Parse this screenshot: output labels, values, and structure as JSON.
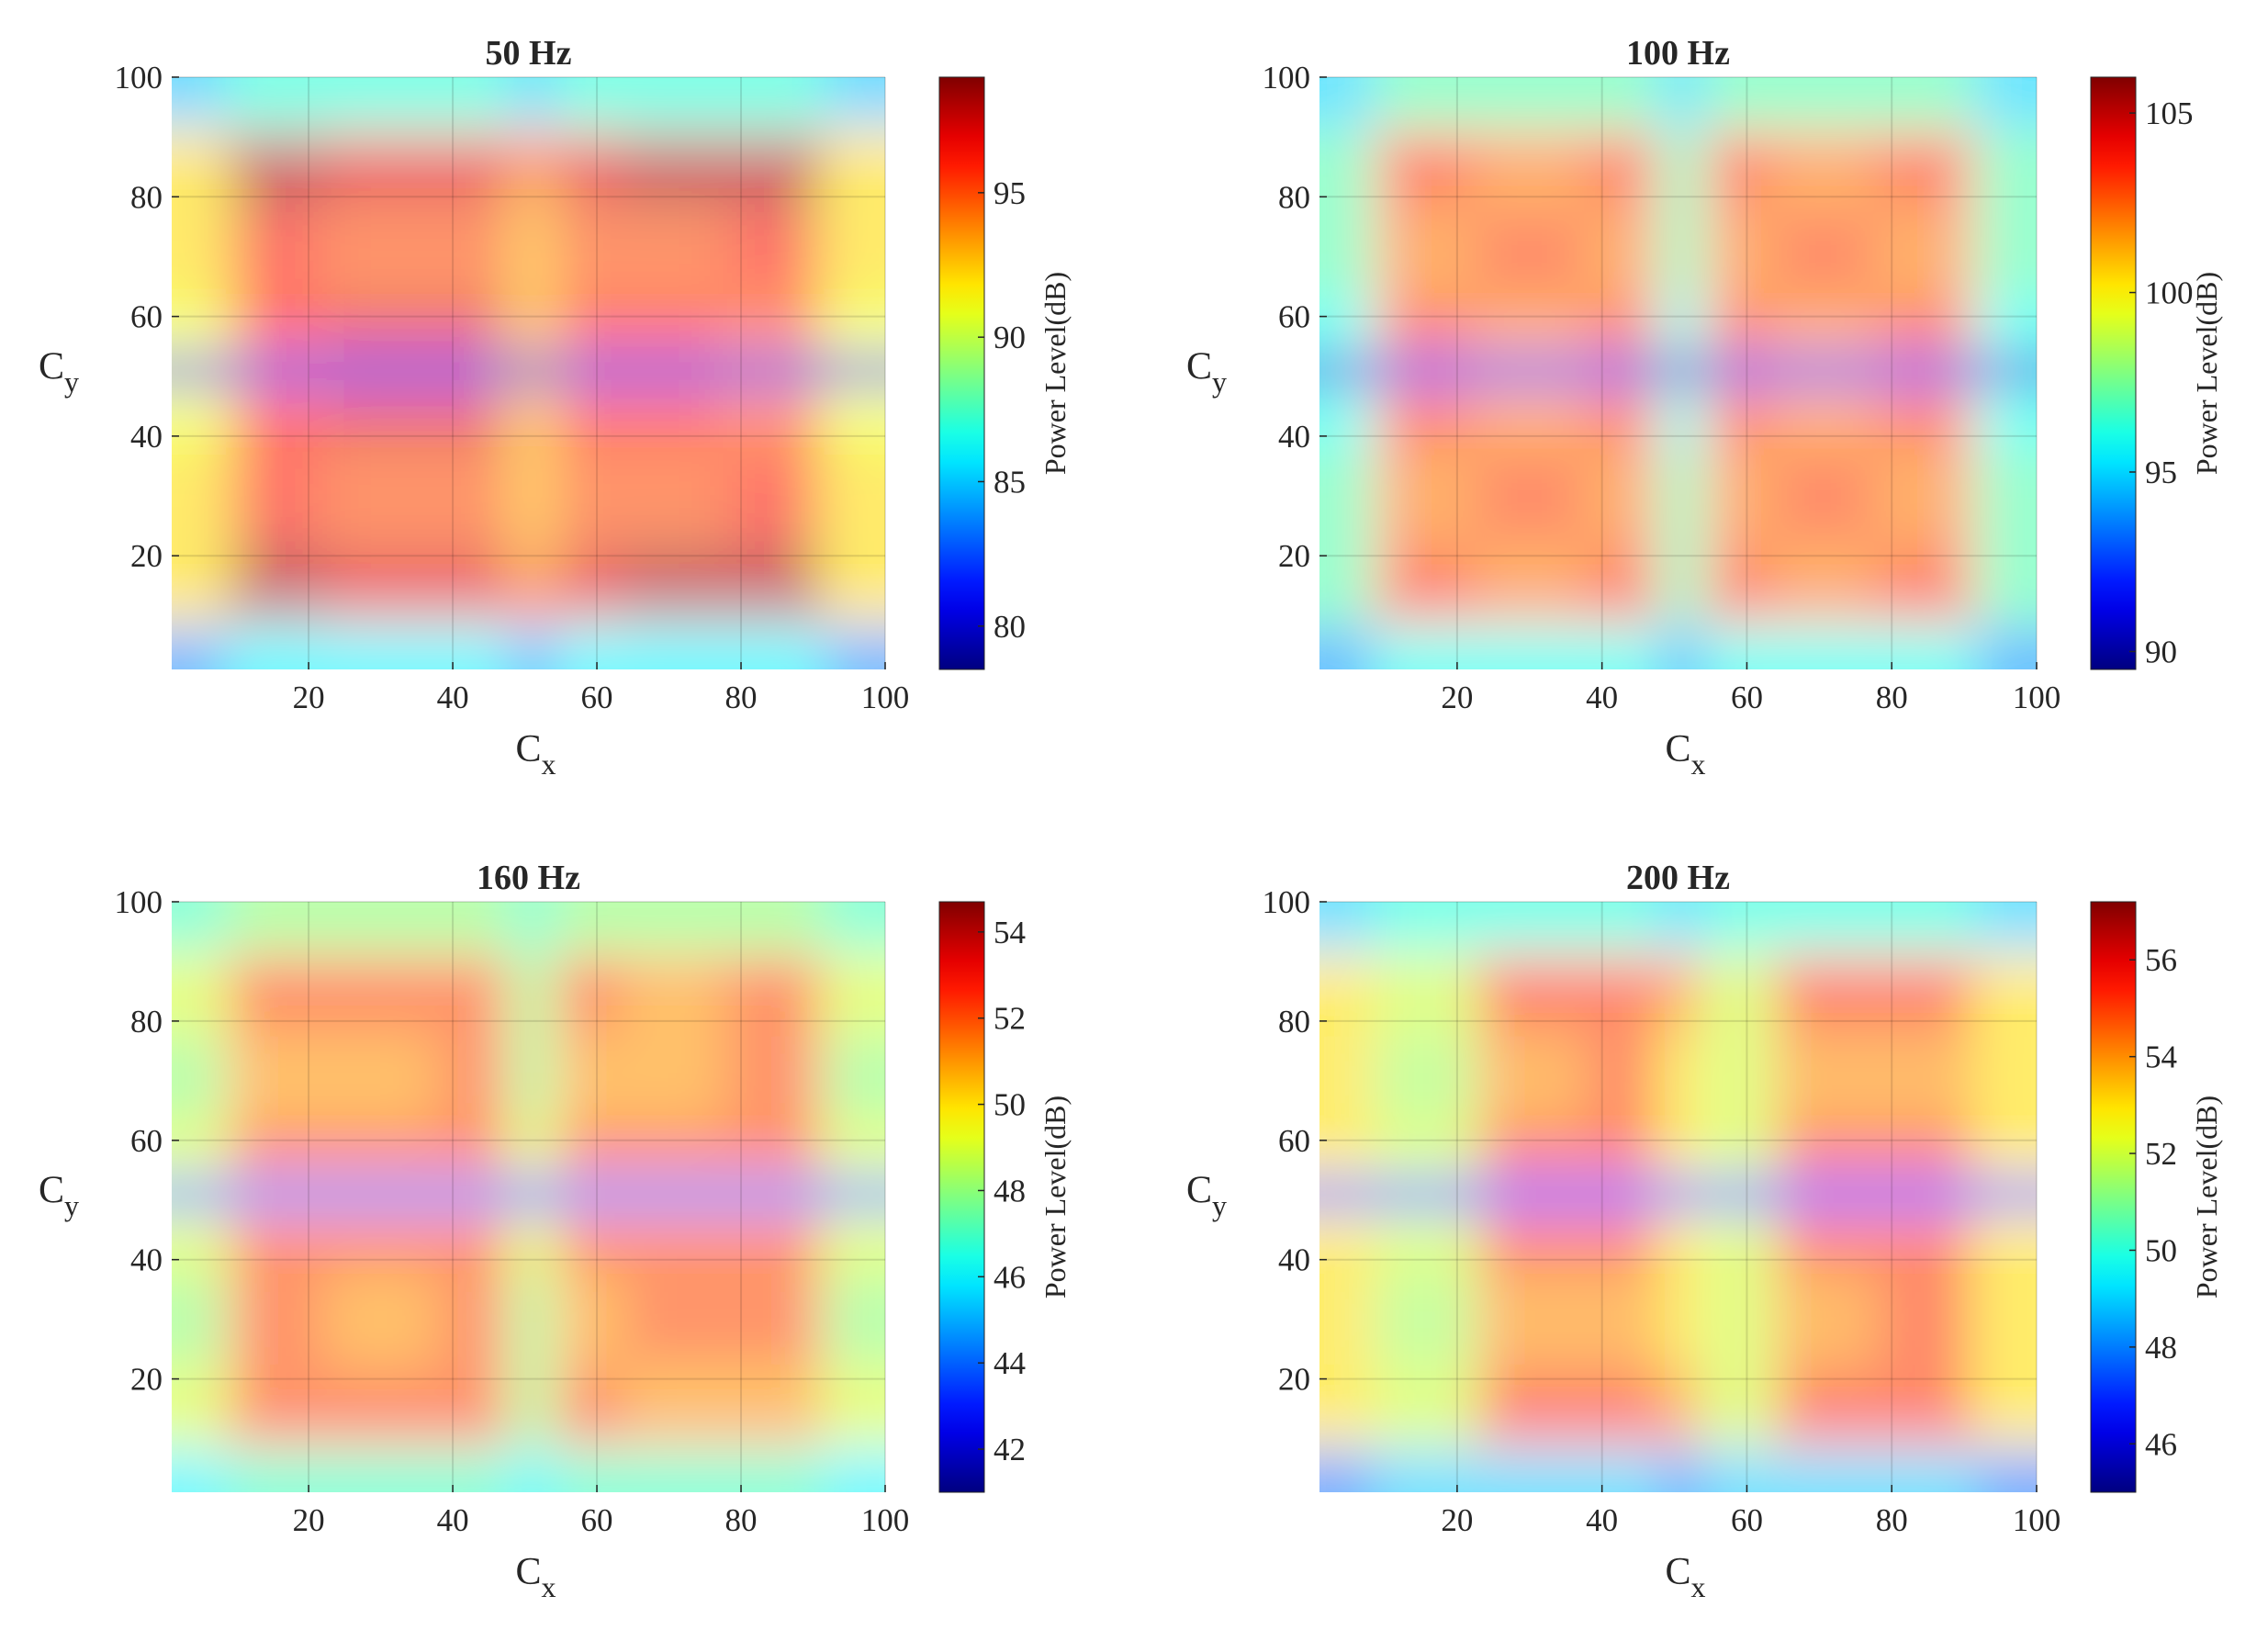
{
  "chart_data": [
    {
      "type": "heatmap",
      "title": "50 Hz",
      "xlabel": "Cx",
      "ylabel": "Cy",
      "colorbar_label": "Power Level(dB)",
      "colormap": "jet",
      "grid": true,
      "x": [
        2,
        15,
        30,
        45,
        51,
        57,
        70,
        85,
        98
      ],
      "y": [
        2,
        15,
        30,
        45,
        51,
        57,
        70,
        85,
        98
      ],
      "z": [
        [
          84,
          86,
          86,
          86,
          84,
          86,
          86,
          86,
          84
        ],
        [
          92,
          98,
          97,
          97,
          94,
          97,
          98,
          98,
          92
        ],
        [
          92,
          96,
          95,
          95,
          93,
          95,
          95,
          96,
          92
        ],
        [
          91,
          96,
          97,
          97,
          93,
          96,
          96,
          95,
          91
        ],
        [
          80,
          80,
          80,
          80,
          79,
          80,
          80,
          80,
          80
        ],
        [
          91,
          96,
          97,
          97,
          93,
          96,
          96,
          95,
          91
        ],
        [
          92,
          96,
          95,
          95,
          93,
          95,
          95,
          96,
          92
        ],
        [
          92,
          98,
          97,
          97,
          94,
          97,
          98,
          98,
          92
        ],
        [
          85,
          87,
          87,
          87,
          85,
          87,
          87,
          87,
          85
        ]
      ],
      "xlim": [
        1,
        100
      ],
      "ylim": [
        1,
        100
      ],
      "xticks": [
        20,
        40,
        60,
        80,
        100
      ],
      "yticks": [
        20,
        40,
        60,
        80,
        100
      ],
      "clim": [
        78.5,
        99
      ],
      "cticks": [
        80,
        85,
        90,
        95
      ]
    },
    {
      "type": "heatmap",
      "title": "100 Hz",
      "xlabel": "Cx",
      "ylabel": "Cy",
      "colorbar_label": "Power Level(dB)",
      "colormap": "jet",
      "grid": true,
      "x": [
        2,
        15,
        30,
        45,
        51,
        57,
        70,
        85,
        98
      ],
      "y": [
        2,
        15,
        30,
        45,
        51,
        57,
        70,
        85,
        98
      ],
      "z": [
        [
          94,
          96,
          96,
          96,
          94,
          96,
          96,
          96,
          94
        ],
        [
          97,
          103,
          102,
          103,
          97,
          103,
          102,
          103,
          97
        ],
        [
          97,
          102,
          103,
          102,
          97,
          102,
          103,
          102,
          97
        ],
        [
          96,
          103,
          102,
          103,
          96,
          103,
          102,
          103,
          96
        ],
        [
          91,
          91,
          91,
          91,
          90.5,
          91,
          91,
          91,
          91
        ],
        [
          96,
          103,
          102,
          103,
          96,
          103,
          102,
          103,
          96
        ],
        [
          97,
          102,
          103,
          102,
          97,
          102,
          103,
          102,
          97
        ],
        [
          97,
          103,
          102,
          103,
          97,
          103,
          102,
          103,
          97
        ],
        [
          95,
          97,
          97,
          97,
          95,
          97,
          97,
          97,
          95
        ]
      ],
      "xlim": [
        1,
        100
      ],
      "ylim": [
        1,
        100
      ],
      "xticks": [
        20,
        40,
        60,
        80,
        100
      ],
      "yticks": [
        20,
        40,
        60,
        80,
        100
      ],
      "clim": [
        89.5,
        106
      ],
      "cticks": [
        90,
        95,
        100,
        105
      ]
    },
    {
      "type": "heatmap",
      "title": "160 Hz",
      "xlabel": "Cx",
      "ylabel": "Cy",
      "colorbar_label": "Power Level(dB)",
      "colormap": "jet",
      "grid": true,
      "x": [
        2,
        15,
        30,
        45,
        51,
        57,
        70,
        85,
        98
      ],
      "y": [
        2,
        15,
        30,
        45,
        51,
        57,
        70,
        85,
        98
      ],
      "z": [
        [
          46,
          47,
          47,
          47,
          46,
          47,
          47,
          47,
          46
        ],
        [
          49,
          52,
          52,
          52,
          48,
          52,
          51,
          51,
          49
        ],
        [
          48,
          52,
          51,
          52,
          48,
          51,
          52,
          52,
          48
        ],
        [
          49,
          52,
          52,
          52,
          49,
          52,
          52,
          52,
          49
        ],
        [
          44,
          44,
          44,
          44,
          43.5,
          44,
          44,
          44,
          44
        ],
        [
          49,
          52,
          52,
          52,
          49,
          52,
          52,
          52,
          49
        ],
        [
          48,
          51,
          51,
          52,
          48,
          51,
          51,
          52,
          48
        ],
        [
          49,
          52,
          52,
          52,
          48,
          52,
          51,
          52,
          49
        ],
        [
          47,
          48,
          48,
          48,
          47,
          48,
          48,
          48,
          47
        ]
      ],
      "xlim": [
        1,
        100
      ],
      "ylim": [
        1,
        100
      ],
      "xticks": [
        20,
        40,
        60,
        80,
        100
      ],
      "yticks": [
        20,
        40,
        60,
        80,
        100
      ],
      "clim": [
        41,
        54.7
      ],
      "cticks": [
        42,
        44,
        46,
        48,
        50,
        52,
        54
      ]
    },
    {
      "type": "heatmap",
      "title": "200 Hz",
      "xlabel": "Cx",
      "ylabel": "Cy",
      "colorbar_label": "Power Level(dB)",
      "colormap": "jet",
      "grid": true,
      "x": [
        2,
        15,
        30,
        45,
        51,
        57,
        70,
        85,
        98
      ],
      "y": [
        2,
        15,
        30,
        45,
        51,
        57,
        70,
        85,
        98
      ],
      "z": [
        [
          48,
          49,
          49,
          49,
          48,
          49,
          49,
          49,
          48
        ],
        [
          53,
          52,
          55,
          55,
          54,
          52,
          55,
          55,
          53
        ],
        [
          53,
          51.5,
          54,
          54,
          53,
          52,
          54,
          55,
          53
        ],
        [
          53,
          52,
          55,
          55,
          53,
          52,
          55,
          55,
          53
        ],
        [
          47,
          47,
          47,
          47,
          47,
          47,
          47,
          47,
          47
        ],
        [
          53,
          52,
          55,
          55,
          53,
          52,
          55,
          55,
          53
        ],
        [
          53,
          51.5,
          54,
          55,
          53,
          52,
          54,
          54,
          53
        ],
        [
          53,
          52,
          55,
          55,
          54,
          52,
          55,
          55,
          53
        ],
        [
          49,
          50,
          50,
          50,
          49,
          50,
          50,
          50,
          49
        ]
      ],
      "xlim": [
        1,
        100
      ],
      "ylim": [
        1,
        100
      ],
      "xticks": [
        20,
        40,
        60,
        80,
        100
      ],
      "yticks": [
        20,
        40,
        60,
        80,
        100
      ],
      "clim": [
        45,
        57.2
      ],
      "cticks": [
        46,
        48,
        50,
        52,
        54,
        56
      ]
    }
  ]
}
